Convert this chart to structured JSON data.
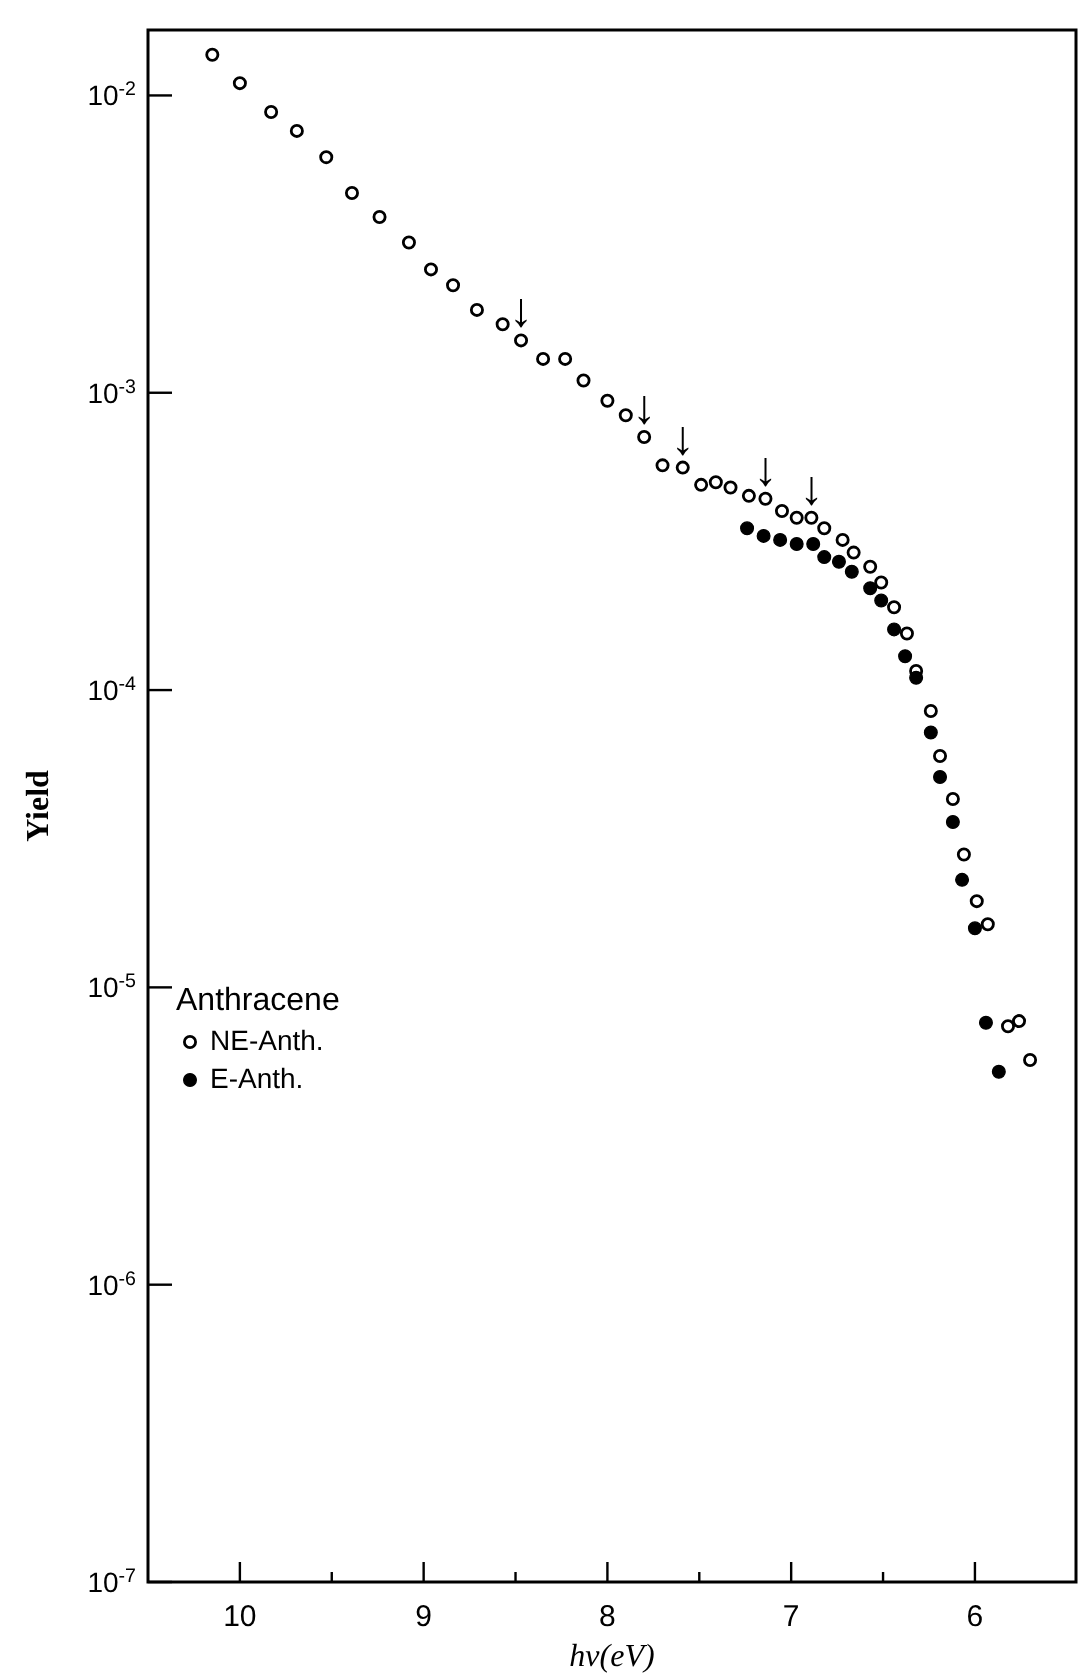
{
  "chart_data": {
    "type": "scatter",
    "xlabel": "hν(eV)",
    "ylabel": "Yield",
    "legend_title": "Anthracene",
    "legend": "left",
    "log": "y",
    "marker": "circle",
    "grid": false,
    "xlim": [
      10.5,
      5.45
    ],
    "ylim": [
      1e-07,
      0.0166
    ],
    "xticks": [
      10,
      {
        "value": 9.5,
        "label": null
      },
      9,
      {
        "value": 8.5,
        "label": null
      },
      8,
      {
        "value": 7.5,
        "label": null
      },
      7,
      {
        "value": 6.5,
        "label": null
      },
      6
    ],
    "yticks": [
      {
        "value": 0.01,
        "label": "10$^{-2}$"
      },
      {
        "value": 0.001,
        "label": "10$^{-3}$"
      },
      {
        "value": 0.0001,
        "label": "10$^{-4}$"
      },
      {
        "value": 1e-05,
        "label": "10$^{-5}$"
      },
      {
        "value": 1e-06,
        "label": "10$^{-6}$"
      },
      {
        "value": 1e-07,
        "label": "10$^{-7}$"
      }
    ],
    "series": [
      {
        "name": "NE-Anth.",
        "color": "#000000",
        "x": [
          10.15,
          10.0,
          9.83,
          9.69,
          9.53,
          9.39,
          9.24,
          9.08,
          8.96,
          8.84,
          8.71,
          8.57,
          8.47,
          8.35,
          8.23,
          8.13,
          8.0,
          7.9,
          7.8,
          7.7,
          7.59,
          7.49,
          7.41,
          7.33,
          7.23,
          7.14,
          7.05,
          6.97,
          6.89,
          6.82,
          6.72,
          6.66,
          6.57,
          6.51,
          6.44,
          6.37,
          6.32,
          6.24,
          6.19,
          6.12,
          6.06,
          5.99,
          5.93,
          5.82,
          5.76,
          5.7
        ],
        "values": [
          0.0137,
          0.011,
          0.0088,
          0.0076,
          0.0062,
          0.0047,
          0.0039,
          0.0032,
          0.0026,
          0.0023,
          0.0019,
          0.0017,
          0.0015,
          0.0013,
          0.0013,
          0.0011,
          0.00094,
          0.00084,
          0.00071,
          0.00057,
          0.00056,
          0.00049,
          0.0005,
          0.00048,
          0.00045,
          0.00044,
          0.0004,
          0.00038,
          0.00038,
          0.00035,
          0.00032,
          0.00029,
          0.00026,
          0.00023,
          0.00019,
          0.000155,
          0.000116,
          8.5e-05,
          6e-05,
          4.3e-05,
          2.8e-05,
          1.95e-05,
          1.63e-05,
          7.4e-06,
          7.7e-06,
          5.7e-06
        ]
      },
      {
        "name": "E-Anth.",
        "color": "#000000",
        "x": [
          7.24,
          7.15,
          7.06,
          6.97,
          6.88,
          6.82,
          6.74,
          6.67,
          6.57,
          6.51,
          6.44,
          6.38,
          6.32,
          6.24,
          6.19,
          6.12,
          6.07,
          6.0,
          5.94,
          5.87
        ],
        "values": [
          0.00035,
          0.00033,
          0.00032,
          0.00031,
          0.00031,
          0.00028,
          0.00027,
          0.00025,
          0.00022,
          0.0002,
          0.00016,
          0.00013,
          0.00011,
          7.2e-05,
          5.1e-05,
          3.6e-05,
          2.3e-05,
          1.58e-05,
          7.6e-06,
          5.2e-06
        ]
      }
    ],
    "annotations": [
      {
        "text": "↓",
        "x": 8.47,
        "y": 0.0015
      },
      {
        "text": "↓",
        "x": 7.8,
        "y": 0.00071
      },
      {
        "text": "↓",
        "x": 7.59,
        "y": 0.00056
      },
      {
        "text": "↓",
        "x": 7.14,
        "y": 0.00044
      },
      {
        "text": "↓",
        "x": 6.89,
        "y": 0.00038
      }
    ]
  }
}
